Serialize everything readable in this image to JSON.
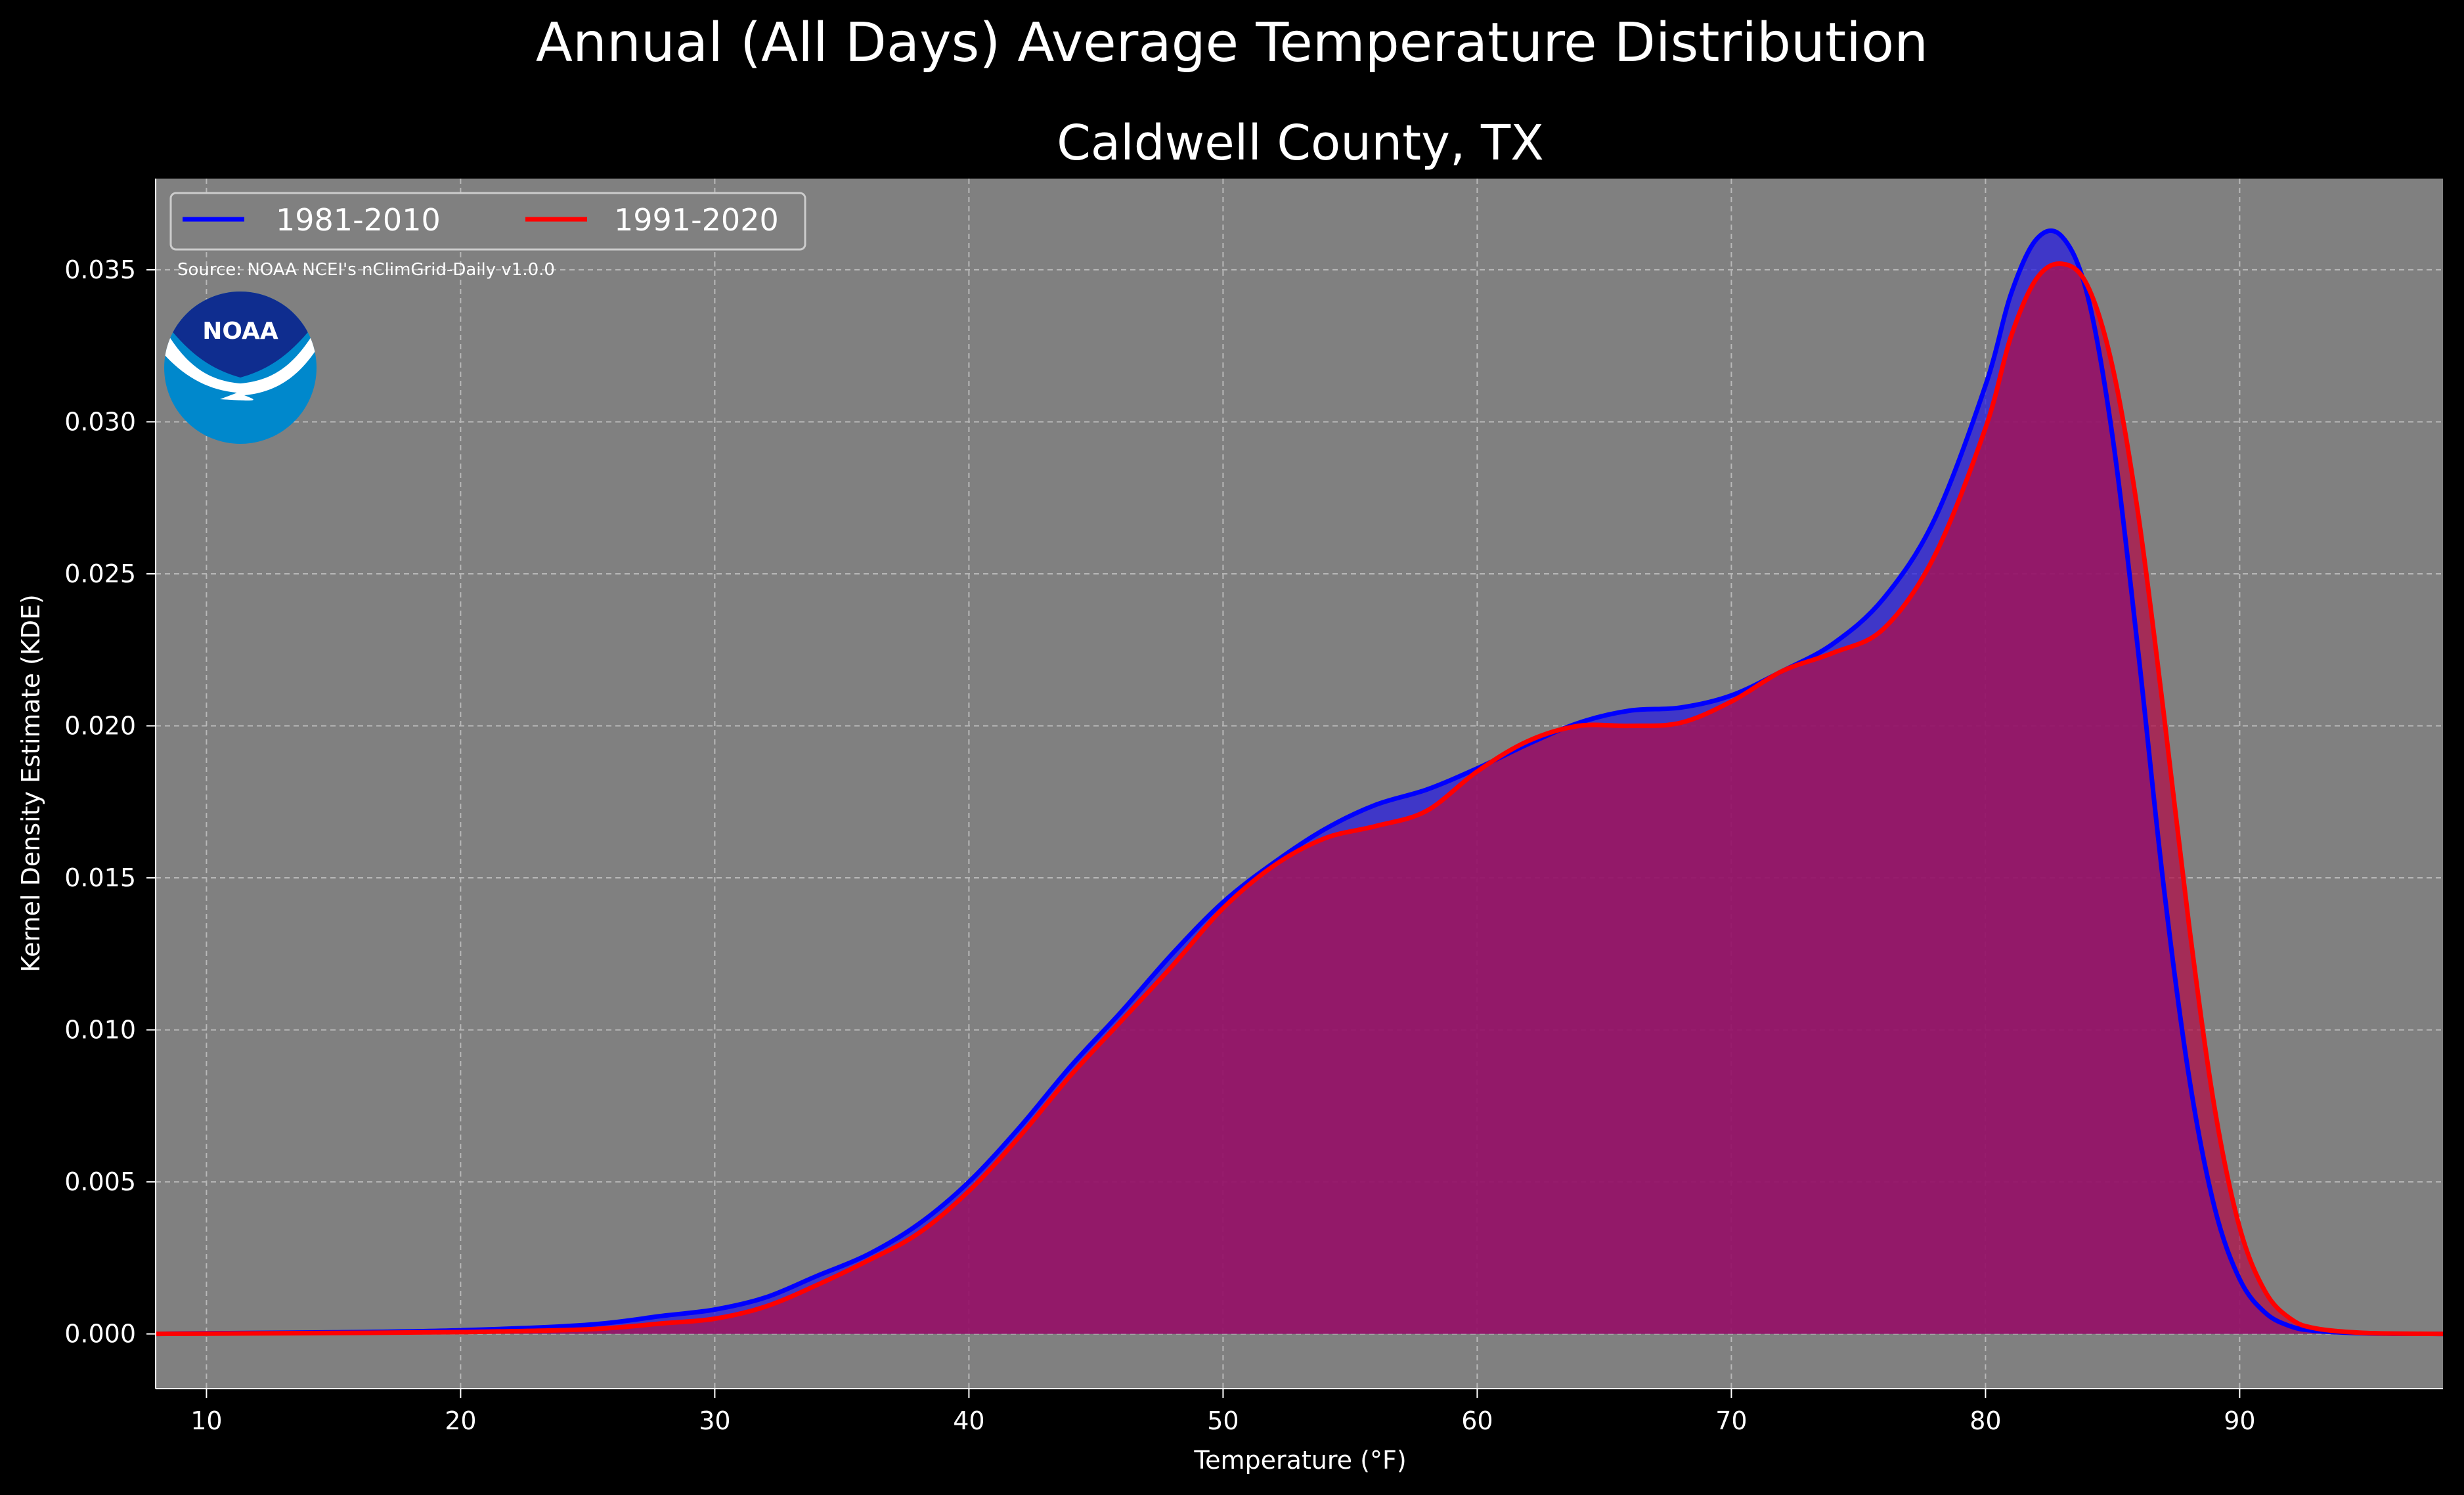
{
  "title": "Annual (All Days) Average Temperature Distribution",
  "chart_data": {
    "type": "area",
    "title": "Caldwell County, TX",
    "xlabel": "Temperature (°F)",
    "ylabel": "Kernel Density Estimate (KDE)",
    "xlim": [
      8,
      98
    ],
    "ylim": [
      -0.0018,
      0.038
    ],
    "xticks": [
      10,
      20,
      30,
      40,
      50,
      60,
      70,
      80,
      90
    ],
    "xtick_labels": [
      "10",
      "20",
      "30",
      "40",
      "50",
      "60",
      "70",
      "80",
      "90"
    ],
    "yticks": [
      0,
      0.005,
      0.01,
      0.015,
      0.02,
      0.025,
      0.03,
      0.035
    ],
    "ytick_labels": [
      "0.000",
      "0.005",
      "0.010",
      "0.015",
      "0.020",
      "0.025",
      "0.030",
      "0.035"
    ],
    "grid": true,
    "legend_position": "top-left",
    "annotation": "Source: NOAA NCEI's nClimGrid-Daily v1.0.0",
    "background": "#808080",
    "series": [
      {
        "name": "1981-2010",
        "color": "#0000ff",
        "fill": "#3a30c8",
        "x": [
          8,
          10,
          15,
          20,
          25,
          28,
          30,
          32,
          34,
          36,
          38,
          40,
          42,
          44,
          46,
          48,
          50,
          52,
          54,
          56,
          58,
          60,
          62,
          64,
          66,
          68,
          70,
          72,
          74,
          76,
          78,
          80,
          81,
          82,
          83,
          84,
          85,
          86,
          87,
          88,
          89,
          90,
          91,
          92,
          93,
          95,
          98
        ],
        "y": [
          0.0,
          2e-05,
          5e-05,
          0.00012,
          0.0003,
          0.0006,
          0.0008,
          0.0012,
          0.0019,
          0.0026,
          0.0036,
          0.005,
          0.0068,
          0.0088,
          0.0106,
          0.0125,
          0.0142,
          0.0155,
          0.0166,
          0.0174,
          0.0179,
          0.0186,
          0.0194,
          0.0201,
          0.0205,
          0.0206,
          0.021,
          0.0218,
          0.0227,
          0.0242,
          0.0268,
          0.0312,
          0.0342,
          0.036,
          0.0361,
          0.0342,
          0.0295,
          0.0225,
          0.0148,
          0.0085,
          0.0042,
          0.0018,
          0.0007,
          0.00025,
          0.0001,
          2e-05,
          0.0
        ]
      },
      {
        "name": "1991-2020",
        "color": "#ff0000",
        "fill": "#9e1e5c",
        "x": [
          8,
          10,
          15,
          20,
          25,
          28,
          30,
          32,
          34,
          36,
          38,
          40,
          42,
          44,
          46,
          48,
          50,
          52,
          54,
          56,
          58,
          60,
          62,
          64,
          66,
          68,
          70,
          72,
          74,
          76,
          78,
          80,
          81,
          82,
          83,
          84,
          85,
          86,
          87,
          88,
          89,
          90,
          91,
          92,
          93,
          95,
          98
        ],
        "y": [
          0.0,
          1e-05,
          3e-05,
          6e-05,
          0.00015,
          0.00035,
          0.0005,
          0.0009,
          0.0016,
          0.0024,
          0.0033,
          0.0047,
          0.0065,
          0.0085,
          0.0103,
          0.0121,
          0.014,
          0.0154,
          0.0163,
          0.0167,
          0.0172,
          0.0185,
          0.0195,
          0.02,
          0.02,
          0.0201,
          0.0208,
          0.0218,
          0.0224,
          0.0232,
          0.0256,
          0.0298,
          0.0328,
          0.0347,
          0.0352,
          0.0345,
          0.0318,
          0.027,
          0.0205,
          0.0135,
          0.0075,
          0.0035,
          0.0014,
          0.0005,
          0.00018,
          3e-05,
          0.0
        ]
      }
    ]
  },
  "logo": {
    "text": "NOAA",
    "colors": {
      "top": "#0f2d8f",
      "bottom": "#0088cc",
      "bird": "#ffffff"
    }
  }
}
